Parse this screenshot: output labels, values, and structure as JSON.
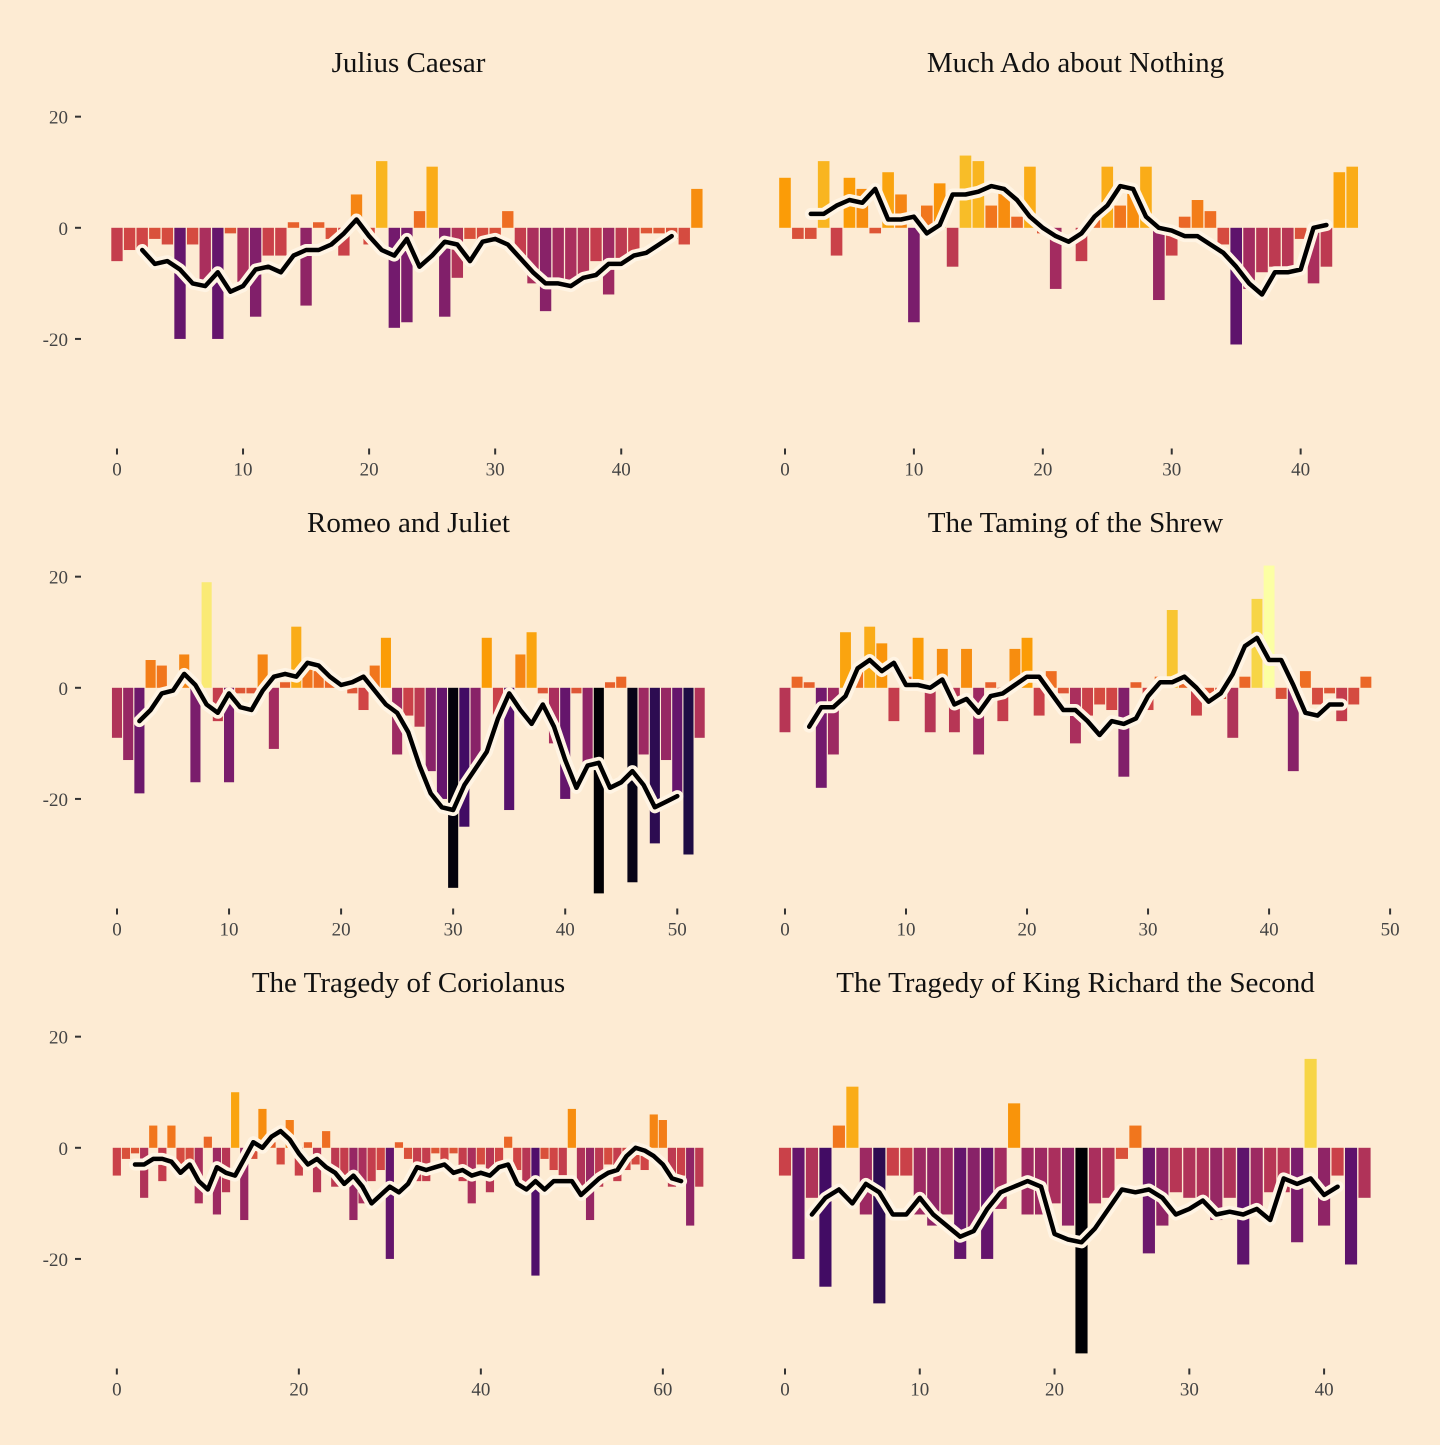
{
  "color_scale": {
    "domain": [
      -37,
      22
    ],
    "colors": [
      "#000004",
      "#1b0c41",
      "#4a0c6b",
      "#781c6d",
      "#a52c60",
      "#cf4446",
      "#ed6925",
      "#fb9b06",
      "#f7d13d",
      "#fcffa4"
    ]
  },
  "chart_data": [
    {
      "type": "bar",
      "title": "Julius Caesar",
      "x": [
        0,
        1,
        2,
        3,
        4,
        5,
        6,
        7,
        8,
        9,
        10,
        11,
        12,
        13,
        14,
        15,
        16,
        17,
        18,
        19,
        20,
        21,
        22,
        23,
        24,
        25,
        26,
        27,
        28,
        29,
        30,
        31,
        32,
        33,
        34,
        35,
        36,
        37,
        38,
        39,
        40,
        41,
        42,
        43,
        44,
        45,
        46
      ],
      "values": [
        -6,
        -4,
        -4,
        -2,
        -3,
        -20,
        -3,
        -10,
        -20,
        -1,
        -10,
        -16,
        -5,
        -5,
        1,
        -14,
        1,
        -2,
        -5,
        6,
        -3,
        12,
        -18,
        -17,
        3,
        11,
        -16,
        -9,
        -2,
        -3,
        -2,
        3,
        -6,
        -10,
        -15,
        -11,
        -10,
        -9,
        -6,
        -12,
        -7,
        -5,
        -1,
        -1,
        -2,
        -3,
        7
      ],
      "trend": [
        null,
        null,
        -4,
        -6.5,
        -6,
        -7.5,
        -10,
        -10.5,
        -8,
        -11.5,
        -10.5,
        -7.5,
        -7,
        -8,
        -5,
        -4,
        -4,
        -3,
        -1,
        1.5,
        -1.5,
        -4,
        -5,
        -2,
        -7,
        -5,
        -2.5,
        -3,
        -6,
        -2.5,
        -2,
        -3,
        -5.5,
        -8,
        -10,
        -10,
        -10.5,
        -9,
        -8.5,
        -6.5,
        -6.5,
        -5,
        -4.5,
        -3,
        -1.5,
        null,
        null
      ],
      "xlim": [
        -0.95,
        47.2
      ],
      "xticks": [
        0,
        10,
        20,
        30,
        40
      ],
      "ylim": [
        -39,
        23
      ],
      "yticks": [
        -20,
        0,
        20
      ]
    },
    {
      "type": "bar",
      "title": "Much Ado about Nothing",
      "x": [
        0,
        1,
        2,
        3,
        4,
        5,
        6,
        7,
        8,
        9,
        10,
        11,
        12,
        13,
        14,
        15,
        16,
        17,
        18,
        19,
        20,
        21,
        22,
        23,
        24,
        25,
        26,
        27,
        28,
        29,
        30,
        31,
        32,
        33,
        34,
        35,
        36,
        37,
        38,
        39,
        40,
        41,
        42,
        43,
        44
      ],
      "values": [
        9,
        -2,
        -2,
        12,
        -5,
        9,
        7,
        -1,
        10,
        6,
        -17,
        4,
        8,
        -7,
        13,
        12,
        4,
        7,
        2,
        11,
        -1,
        -11,
        0,
        -6,
        2,
        11,
        4,
        7,
        11,
        -13,
        -5,
        2,
        5,
        3,
        -3,
        -21,
        -11,
        -8,
        -7,
        -8,
        -2,
        -10,
        -7,
        10,
        11
      ],
      "trend": [
        null,
        null,
        2.5,
        2.5,
        4,
        5,
        4.5,
        7,
        1.5,
        1.5,
        2,
        -1,
        0.5,
        6,
        6,
        6.5,
        7.5,
        7,
        5,
        2,
        0,
        -1.5,
        -2.5,
        -1,
        2,
        4,
        7.5,
        7,
        2,
        0,
        -0.5,
        -1.5,
        -1.5,
        -3,
        -4.5,
        -7,
        -10,
        -12,
        -8,
        -8,
        -7.5,
        0,
        0.5,
        null,
        null
      ],
      "xlim": [
        -0.93,
        46
      ],
      "xticks": [
        0,
        10,
        20,
        30,
        40
      ],
      "ylim": [
        -39,
        23
      ]
    },
    {
      "type": "bar",
      "title": "Romeo and Juliet",
      "x": [
        0,
        1,
        2,
        3,
        4,
        5,
        6,
        7,
        8,
        9,
        10,
        11,
        12,
        13,
        14,
        15,
        16,
        17,
        18,
        19,
        20,
        21,
        22,
        23,
        24,
        25,
        26,
        27,
        28,
        29,
        30,
        31,
        32,
        33,
        34,
        35,
        36,
        37,
        38,
        39,
        40,
        41,
        42,
        43,
        44,
        45,
        46,
        47,
        48,
        49,
        50,
        51,
        52
      ],
      "values": [
        -9,
        -13,
        -19,
        5,
        4,
        -1,
        6,
        -17,
        19,
        -6,
        -17,
        -1,
        -1,
        6,
        -11,
        1,
        11,
        4,
        3,
        2,
        1,
        -1,
        -4,
        4,
        9,
        -12,
        -5,
        -7,
        -15,
        -20,
        -36,
        -25,
        -15,
        9,
        -5,
        -22,
        6,
        10,
        -1,
        -10,
        -20,
        -1,
        -14,
        -37,
        1,
        2,
        -35,
        -12,
        -28,
        -13,
        -20,
        -30,
        -9
      ],
      "trend": [
        null,
        null,
        -6,
        -4,
        -1,
        -0.5,
        2.5,
        0.5,
        -3,
        -4.5,
        -1,
        -3.5,
        -4,
        -0.5,
        2,
        2.5,
        2,
        4.5,
        4,
        2,
        0.5,
        1,
        2,
        -0.5,
        -3,
        -4.5,
        -8,
        -14,
        -19,
        -21.5,
        -22,
        -17.5,
        -14.5,
        -11.5,
        -5.5,
        -1,
        -4,
        -6.5,
        -3,
        -7,
        -13,
        -18,
        -14,
        -13.5,
        -18,
        -17,
        -15,
        -17.5,
        -21.5,
        -20.5,
        -19.5,
        null,
        null
      ],
      "xlim": [
        -1.07,
        53.1
      ],
      "xticks": [
        0,
        10,
        20,
        30,
        40,
        50
      ],
      "ylim": [
        -39,
        23
      ],
      "yticks": [
        -20,
        0,
        20
      ]
    },
    {
      "type": "bar",
      "title": "The Taming of the Shrew",
      "x": [
        0,
        1,
        2,
        3,
        4,
        5,
        6,
        7,
        8,
        9,
        10,
        11,
        12,
        13,
        14,
        15,
        16,
        17,
        18,
        19,
        20,
        21,
        22,
        23,
        24,
        25,
        26,
        27,
        28,
        29,
        30,
        31,
        32,
        33,
        34,
        35,
        36,
        37,
        38,
        39,
        40,
        41,
        42,
        43,
        44,
        45,
        46,
        47,
        48
      ],
      "values": [
        -8,
        2,
        1,
        -18,
        -12,
        10,
        3,
        11,
        8,
        -6,
        2,
        9,
        -8,
        7,
        -8,
        7,
        -12,
        1,
        -6,
        7,
        9,
        -5,
        3,
        -1,
        -10,
        -5,
        -3,
        -4,
        -16,
        1,
        -4,
        2,
        14,
        2,
        -5,
        -1,
        -2,
        -9,
        2,
        16,
        22,
        -2,
        -15,
        3,
        -3,
        -1,
        -6,
        -3,
        2
      ],
      "trend": [
        null,
        null,
        -7,
        -3.5,
        -3.5,
        -1.5,
        3.5,
        5,
        3,
        4.5,
        0.5,
        0.5,
        0,
        1.5,
        -3,
        -2,
        -4.5,
        -1.5,
        -1,
        0.5,
        2,
        2,
        -1,
        -4,
        -4,
        -6,
        -8.5,
        -6,
        -6.5,
        -5.5,
        -1.5,
        1,
        1,
        2,
        0,
        -2.5,
        -1,
        2.5,
        7.5,
        9,
        5,
        5,
        0.5,
        -4.5,
        -5,
        -3,
        -3,
        null,
        null
      ],
      "xlim": [
        -0.99,
        49.0
      ],
      "xticks": [
        0,
        10,
        20,
        30,
        40,
        50
      ],
      "ylim": [
        -39,
        23
      ]
    },
    {
      "type": "bar",
      "title": "The Tragedy of Coriolanus",
      "x": [
        0,
        1,
        2,
        3,
        4,
        5,
        6,
        7,
        8,
        9,
        10,
        11,
        12,
        13,
        14,
        15,
        16,
        17,
        18,
        19,
        20,
        21,
        22,
        23,
        24,
        25,
        26,
        27,
        28,
        29,
        30,
        31,
        32,
        33,
        34,
        35,
        36,
        37,
        38,
        39,
        40,
        41,
        42,
        43,
        44,
        45,
        46,
        47,
        48,
        49,
        50,
        51,
        52,
        53,
        54,
        55,
        56,
        57,
        58,
        59,
        60,
        61,
        62,
        63,
        64
      ],
      "values": [
        -5,
        -2,
        -1,
        -9,
        4,
        -6,
        4,
        -3,
        -3,
        -10,
        2,
        -12,
        -8,
        10,
        -13,
        -2,
        7,
        1,
        -3,
        5,
        -5,
        1,
        -8,
        3,
        -7,
        -6,
        -13,
        -10,
        -6,
        -4,
        -20,
        1,
        -2,
        -6,
        -6,
        -1,
        -4,
        -1,
        -6,
        -10,
        -3,
        -8,
        -4,
        2,
        -4,
        -8,
        -23,
        -2,
        -4,
        -6,
        7,
        -9,
        -13,
        -7,
        -3,
        -6,
        -4,
        -3,
        -4,
        6,
        5,
        -7,
        -5,
        -14,
        -7
      ],
      "trend": [
        null,
        null,
        -3,
        -3,
        -2,
        -2,
        -2.5,
        -4.5,
        -3,
        -6,
        -7.5,
        -3.5,
        -4.5,
        -5,
        -2,
        1,
        0,
        2,
        3,
        1.5,
        -1,
        -3,
        -2,
        -3.5,
        -4.5,
        -6.5,
        -5,
        -7,
        -10,
        -8.5,
        -7,
        -8,
        -6.5,
        -3.5,
        -4,
        -3.5,
        -3,
        -4.5,
        -4,
        -5,
        -4.5,
        -5,
        -3.5,
        -3,
        -6.5,
        -7.5,
        -6,
        -7.5,
        -6,
        -6,
        -6,
        -8.5,
        -7,
        -5.5,
        -4.5,
        -4,
        -1.5,
        0,
        -0.5,
        -1.5,
        -3,
        -5.5,
        -6,
        null,
        null
      ],
      "xlim": [
        -1.3,
        65.4
      ],
      "xticks": [
        0,
        20,
        40,
        60
      ],
      "ylim": [
        -39,
        23
      ],
      "yticks": [
        -20,
        0,
        20
      ]
    },
    {
      "type": "bar",
      "title": "The Tragedy of King Richard the Second",
      "x": [
        0,
        1,
        2,
        3,
        4,
        5,
        6,
        7,
        8,
        9,
        10,
        11,
        12,
        13,
        14,
        15,
        16,
        17,
        18,
        19,
        20,
        21,
        22,
        23,
        24,
        25,
        26,
        27,
        28,
        29,
        30,
        31,
        32,
        33,
        34,
        35,
        36,
        37,
        38,
        39,
        40,
        41,
        42,
        43
      ],
      "values": [
        -5,
        -20,
        -9,
        -25,
        4,
        11,
        -12,
        -28,
        -5,
        -5,
        -12,
        -14,
        -12,
        -20,
        -15,
        -20,
        -11,
        8,
        -12,
        -12,
        -10,
        -14,
        -37,
        -10,
        -9,
        -2,
        4,
        -19,
        -14,
        -8,
        -9,
        -9,
        -13,
        -9,
        -21,
        -12,
        -8,
        -8,
        -17,
        16,
        -14,
        -5,
        -21,
        -9
      ],
      "trend": [
        null,
        null,
        -12,
        -9,
        -7.5,
        -10,
        -6.5,
        -8,
        -12,
        -12,
        -9,
        -12,
        -14,
        -16,
        -15,
        -11,
        -8,
        -7,
        -6,
        -7,
        -15.5,
        -16.5,
        -17,
        -14.5,
        -11,
        -7.5,
        -8,
        -7.5,
        -9,
        -12,
        -11,
        -9.5,
        -12,
        -11.5,
        -12,
        -11,
        -13,
        -5.5,
        -6.5,
        -5.5,
        -8.5,
        -7,
        null,
        null
      ],
      "xlim": [
        -0.89,
        44.0
      ],
      "xticks": [
        0,
        10,
        20,
        30,
        40
      ],
      "ylim": [
        -39,
        23
      ]
    }
  ]
}
